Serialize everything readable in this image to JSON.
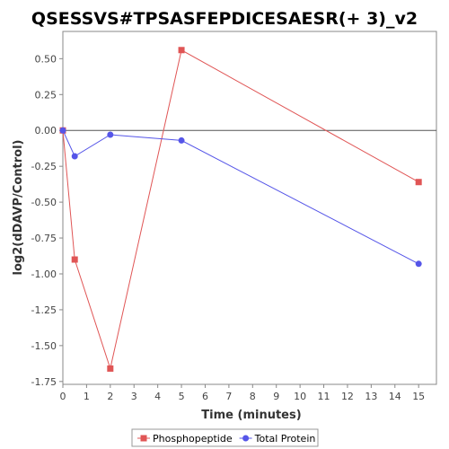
{
  "chart_data": {
    "type": "line",
    "title": "QSESSVS#TPSASFEPDICESAESR(+ 3)_v2",
    "xlabel": "Time (minutes)",
    "ylabel": "log2(dDAVP/Control)",
    "xlim": [
      0,
      15.75
    ],
    "ylim": [
      -1.77,
      0.69
    ],
    "x_ticks": [
      0,
      1,
      2,
      3,
      4,
      5,
      6,
      7,
      8,
      9,
      10,
      11,
      12,
      13,
      14,
      15
    ],
    "y_ticks": [
      -1.75,
      -1.5,
      -1.25,
      -1.0,
      -0.75,
      -0.5,
      -0.25,
      0.0,
      0.25,
      0.5
    ],
    "y_tick_labels": [
      "-1.75",
      "-1.50",
      "-1.25",
      "-1.00",
      "-0.75",
      "-0.50",
      "-0.25",
      "0.00",
      "0.25",
      "0.50"
    ],
    "zero_line": true,
    "grid": false,
    "legend_position": "bottom",
    "series": [
      {
        "name": "Phosphopeptide",
        "color": "#e05555",
        "marker": "square",
        "x": [
          0,
          0.5,
          2,
          5,
          15
        ],
        "y": [
          0.0,
          -0.9,
          -1.66,
          0.56,
          -0.36
        ]
      },
      {
        "name": "Total Protein",
        "color": "#5555e8",
        "marker": "circle",
        "x": [
          0,
          0.5,
          2,
          5,
          15
        ],
        "y": [
          0.0,
          -0.18,
          -0.03,
          -0.07,
          -0.93
        ]
      }
    ]
  }
}
